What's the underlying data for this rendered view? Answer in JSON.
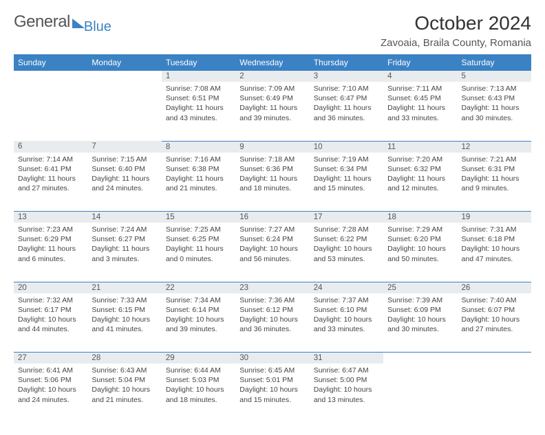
{
  "brand": {
    "part1": "General",
    "part2": "Blue"
  },
  "title": "October 2024",
  "location": "Zavoaia, Braila County, Romania",
  "colors": {
    "header_bg": "#3b82c4",
    "header_fg": "#ffffff",
    "daynum_bg": "#e9ecef",
    "text": "#333333",
    "rule": "#3b82c4"
  },
  "day_names": [
    "Sunday",
    "Monday",
    "Tuesday",
    "Wednesday",
    "Thursday",
    "Friday",
    "Saturday"
  ],
  "weeks": [
    [
      null,
      null,
      {
        "n": "1",
        "sr": "7:08 AM",
        "ss": "6:51 PM",
        "dl": "11 hours and 43 minutes."
      },
      {
        "n": "2",
        "sr": "7:09 AM",
        "ss": "6:49 PM",
        "dl": "11 hours and 39 minutes."
      },
      {
        "n": "3",
        "sr": "7:10 AM",
        "ss": "6:47 PM",
        "dl": "11 hours and 36 minutes."
      },
      {
        "n": "4",
        "sr": "7:11 AM",
        "ss": "6:45 PM",
        "dl": "11 hours and 33 minutes."
      },
      {
        "n": "5",
        "sr": "7:13 AM",
        "ss": "6:43 PM",
        "dl": "11 hours and 30 minutes."
      }
    ],
    [
      {
        "n": "6",
        "sr": "7:14 AM",
        "ss": "6:41 PM",
        "dl": "11 hours and 27 minutes."
      },
      {
        "n": "7",
        "sr": "7:15 AM",
        "ss": "6:40 PM",
        "dl": "11 hours and 24 minutes."
      },
      {
        "n": "8",
        "sr": "7:16 AM",
        "ss": "6:38 PM",
        "dl": "11 hours and 21 minutes."
      },
      {
        "n": "9",
        "sr": "7:18 AM",
        "ss": "6:36 PM",
        "dl": "11 hours and 18 minutes."
      },
      {
        "n": "10",
        "sr": "7:19 AM",
        "ss": "6:34 PM",
        "dl": "11 hours and 15 minutes."
      },
      {
        "n": "11",
        "sr": "7:20 AM",
        "ss": "6:32 PM",
        "dl": "11 hours and 12 minutes."
      },
      {
        "n": "12",
        "sr": "7:21 AM",
        "ss": "6:31 PM",
        "dl": "11 hours and 9 minutes."
      }
    ],
    [
      {
        "n": "13",
        "sr": "7:23 AM",
        "ss": "6:29 PM",
        "dl": "11 hours and 6 minutes."
      },
      {
        "n": "14",
        "sr": "7:24 AM",
        "ss": "6:27 PM",
        "dl": "11 hours and 3 minutes."
      },
      {
        "n": "15",
        "sr": "7:25 AM",
        "ss": "6:25 PM",
        "dl": "11 hours and 0 minutes."
      },
      {
        "n": "16",
        "sr": "7:27 AM",
        "ss": "6:24 PM",
        "dl": "10 hours and 56 minutes."
      },
      {
        "n": "17",
        "sr": "7:28 AM",
        "ss": "6:22 PM",
        "dl": "10 hours and 53 minutes."
      },
      {
        "n": "18",
        "sr": "7:29 AM",
        "ss": "6:20 PM",
        "dl": "10 hours and 50 minutes."
      },
      {
        "n": "19",
        "sr": "7:31 AM",
        "ss": "6:18 PM",
        "dl": "10 hours and 47 minutes."
      }
    ],
    [
      {
        "n": "20",
        "sr": "7:32 AM",
        "ss": "6:17 PM",
        "dl": "10 hours and 44 minutes."
      },
      {
        "n": "21",
        "sr": "7:33 AM",
        "ss": "6:15 PM",
        "dl": "10 hours and 41 minutes."
      },
      {
        "n": "22",
        "sr": "7:34 AM",
        "ss": "6:14 PM",
        "dl": "10 hours and 39 minutes."
      },
      {
        "n": "23",
        "sr": "7:36 AM",
        "ss": "6:12 PM",
        "dl": "10 hours and 36 minutes."
      },
      {
        "n": "24",
        "sr": "7:37 AM",
        "ss": "6:10 PM",
        "dl": "10 hours and 33 minutes."
      },
      {
        "n": "25",
        "sr": "7:39 AM",
        "ss": "6:09 PM",
        "dl": "10 hours and 30 minutes."
      },
      {
        "n": "26",
        "sr": "7:40 AM",
        "ss": "6:07 PM",
        "dl": "10 hours and 27 minutes."
      }
    ],
    [
      {
        "n": "27",
        "sr": "6:41 AM",
        "ss": "5:06 PM",
        "dl": "10 hours and 24 minutes."
      },
      {
        "n": "28",
        "sr": "6:43 AM",
        "ss": "5:04 PM",
        "dl": "10 hours and 21 minutes."
      },
      {
        "n": "29",
        "sr": "6:44 AM",
        "ss": "5:03 PM",
        "dl": "10 hours and 18 minutes."
      },
      {
        "n": "30",
        "sr": "6:45 AM",
        "ss": "5:01 PM",
        "dl": "10 hours and 15 minutes."
      },
      {
        "n": "31",
        "sr": "6:47 AM",
        "ss": "5:00 PM",
        "dl": "10 hours and 13 minutes."
      },
      null,
      null
    ]
  ],
  "labels": {
    "sunrise": "Sunrise:",
    "sunset": "Sunset:",
    "daylight": "Daylight:"
  }
}
